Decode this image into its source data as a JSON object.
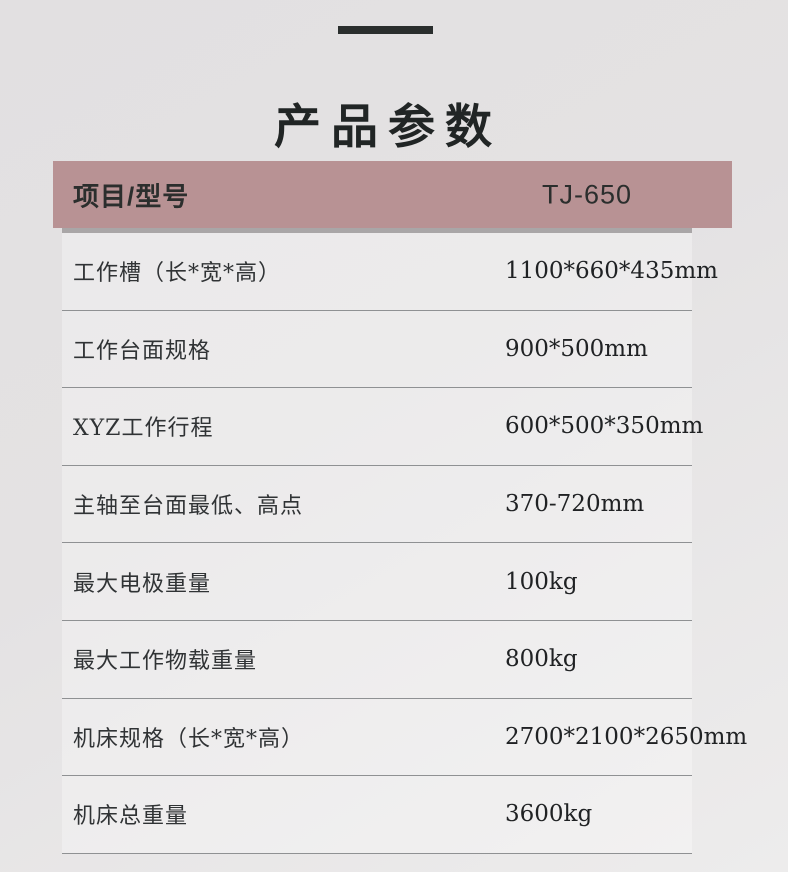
{
  "title": "产品参数",
  "table": {
    "header": {
      "item_col": "项目/型号",
      "model_col": "TJ-650"
    },
    "rows": [
      {
        "label": "工作槽（长*宽*高）",
        "value": "1100*660*435mm"
      },
      {
        "label": "工作台面规格",
        "value": "900*500mm"
      },
      {
        "label": "XYZ工作行程",
        "value": "600*500*350mm"
      },
      {
        "label": "主轴至台面最低、高点",
        "value": "370-720mm"
      },
      {
        "label": "最大电极重量",
        "value": "100kg"
      },
      {
        "label": "最大工作物载重量",
        "value": "800kg"
      },
      {
        "label": "机床规格（长*宽*高）",
        "value": "2700*2100*2650mm"
      },
      {
        "label": "机床总重量",
        "value": "3600kg"
      }
    ]
  },
  "colors": {
    "header_bg": "#b89294",
    "top_bar": "#2a2e2d",
    "divider": "#8f9193",
    "header_shadow": "#a9a6a7",
    "page_bg": "#e3e1e2"
  }
}
